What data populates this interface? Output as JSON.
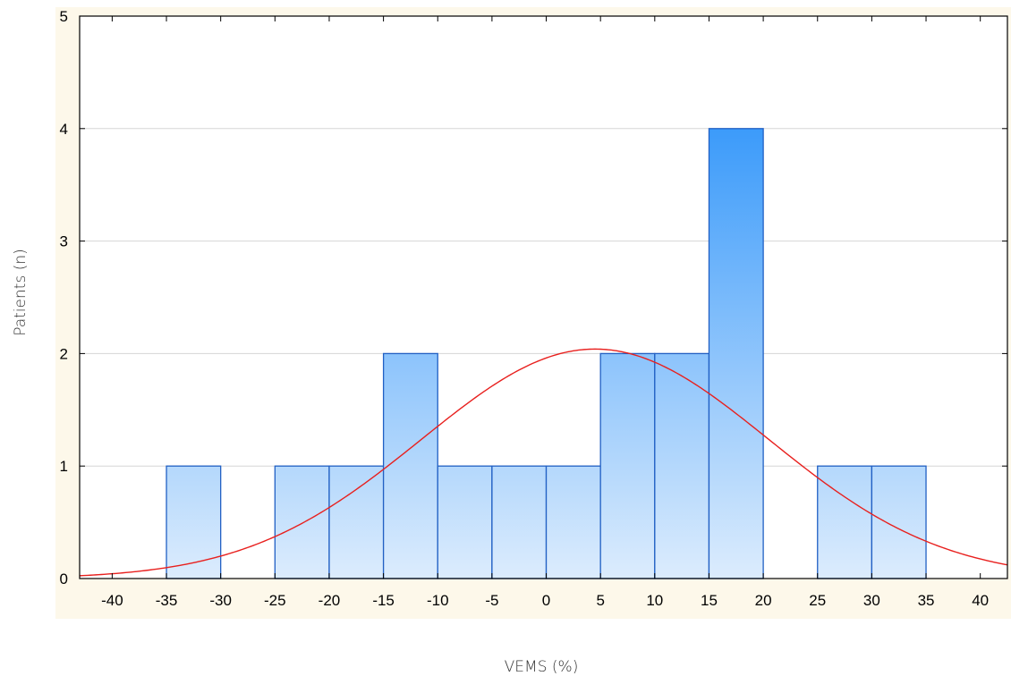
{
  "chart_data": {
    "type": "bar",
    "title": "",
    "xlabel": "VEMS (%)",
    "ylabel": "Patients (n)",
    "xlim": [
      -43,
      42.5
    ],
    "ylim": [
      0,
      5
    ],
    "x_ticks": [
      -40,
      -35,
      -30,
      -25,
      -20,
      -15,
      -10,
      -5,
      0,
      5,
      10,
      15,
      20,
      25,
      30,
      35,
      40
    ],
    "y_ticks": [
      0,
      1,
      2,
      3,
      4,
      5
    ],
    "grid": "horizontal",
    "bins": [
      {
        "from": -35,
        "to": -30,
        "value": 1
      },
      {
        "from": -30,
        "to": -25,
        "value": 0
      },
      {
        "from": -25,
        "to": -20,
        "value": 1
      },
      {
        "from": -20,
        "to": -15,
        "value": 1
      },
      {
        "from": -15,
        "to": -10,
        "value": 2
      },
      {
        "from": -10,
        "to": -5,
        "value": 1
      },
      {
        "from": -5,
        "to": 0,
        "value": 1
      },
      {
        "from": 0,
        "to": 5,
        "value": 1
      },
      {
        "from": 5,
        "to": 10,
        "value": 2
      },
      {
        "from": 10,
        "to": 15,
        "value": 2
      },
      {
        "from": 15,
        "to": 20,
        "value": 4
      },
      {
        "from": 20,
        "to": 25,
        "value": 0
      },
      {
        "from": 25,
        "to": 30,
        "value": 1
      },
      {
        "from": 30,
        "to": 35,
        "value": 1
      }
    ],
    "normal_curve": {
      "mean": 4.5,
      "sd": 16.0,
      "peak": 2.04
    },
    "colors": {
      "bar_top": "#3c9bfa",
      "bar_bottom": "#dcecfd",
      "bar_edge": "#2160c4",
      "curve": "#e8201e",
      "plot_background": "#ffffff",
      "frame_background": "#fdf8ea",
      "grid": "#d6d6d6"
    }
  }
}
